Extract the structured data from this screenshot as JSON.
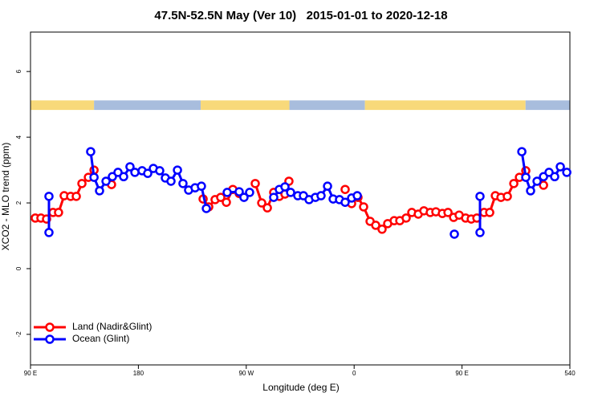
{
  "chart_data": {
    "type": "line",
    "title": "47.5N-52.5N May (Ver 10)   2015-01-01 to 2020-12-18",
    "x_label": "Longitude (deg E)",
    "y_label": "XCO2 - MLO trend (ppm)",
    "xlim": [
      90,
      540
    ],
    "ylim": [
      -2.93,
      7.2
    ],
    "xticks": [
      {
        "value": 90,
        "label": "90 E"
      },
      180,
      {
        "value": 270,
        "label": "90 W"
      },
      {
        "value": 360,
        "label": "0"
      },
      {
        "value": 450,
        "label": "90 E"
      },
      540
    ],
    "yticks": [
      -2,
      0,
      2,
      4,
      6
    ],
    "legend": "bottom-left",
    "strip": {
      "ylim": [
        4.83,
        5.12
      ],
      "segments": [
        {
          "start": 90,
          "end": 143,
          "color": "#f8d97a"
        },
        {
          "start": 143,
          "end": 232,
          "color": "#a8bddd"
        },
        {
          "start": 232,
          "end": 306,
          "color": "#f8d97a"
        },
        {
          "start": 306,
          "end": 369,
          "color": "#a8bddd"
        },
        {
          "start": 369,
          "end": 503,
          "color": "#f8d97a"
        },
        {
          "start": 503,
          "end": 540,
          "color": "#a8bddd"
        }
      ]
    },
    "series": [
      {
        "name": "Land (Nadir&Glint)",
        "color": "#ff0000",
        "x": [
          94.0,
          98.7,
          103.4,
          108.8,
          113.4,
          118.1,
          123.5,
          128.2,
          132.9,
          138.3,
          143.0,
          null,
          157.6,
          null,
          234.0,
          238.7,
          244.0,
          248.7,
          253.4,
          258.8,
          264.1,
          null,
          277.5,
          282.9,
          287.6,
          292.9,
          297.6,
          302.3,
          305.6,
          null,
          352.5,
          null,
          357.9,
          363.2,
          367.9,
          373.3,
          378.0,
          383.3,
          388.0,
          393.4,
          398.1,
          403.4,
          408.1,
          413.5,
          418.2,
          423.5,
          428.2,
          433.6,
          438.3,
          443.0,
          447.6,
          453.0,
          457.7,
          462.4,
          468.4,
          473.1,
          477.8,
          482.5,
          487.8,
          493.2,
          497.9,
          503.2,
          null,
          518.0
        ],
        "values": [
          1.54,
          1.54,
          1.51,
          1.71,
          1.71,
          2.22,
          2.2,
          2.2,
          2.59,
          2.78,
          3.0,
          null,
          2.56,
          null,
          2.12,
          1.88,
          2.1,
          2.17,
          2.02,
          2.41,
          2.29,
          null,
          2.59,
          2.0,
          1.85,
          2.32,
          2.2,
          2.27,
          2.66,
          null,
          2.41,
          null,
          1.98,
          2.17,
          1.88,
          1.44,
          1.32,
          1.2,
          1.37,
          1.46,
          1.46,
          1.54,
          1.71,
          1.66,
          1.76,
          1.71,
          1.73,
          1.68,
          1.71,
          1.56,
          1.63,
          1.54,
          1.51,
          1.54,
          1.71,
          1.71,
          2.22,
          2.17,
          2.2,
          2.59,
          2.78,
          2.98,
          null,
          2.54
        ]
      },
      {
        "name": "Ocean (Glint)",
        "color": "#0000ff",
        "x": [
          105.4,
          105.4,
          null,
          140.2,
          143.0,
          147.6,
          153.0,
          158.3,
          163.0,
          167.7,
          173.0,
          177.1,
          183.1,
          187.8,
          192.5,
          197.8,
          202.5,
          207.2,
          212.6,
          217.2,
          221.9,
          227.3,
          232.6,
          236.7,
          null,
          254.1,
          264.1,
          268.1,
          272.8,
          null,
          292.9,
          297.6,
          302.3,
          307.0,
          313.0,
          317.7,
          322.4,
          327.7,
          332.4,
          337.8,
          342.5,
          347.8,
          352.5,
          357.9,
          362.6,
          null,
          443.6,
          null,
          465.0,
          465.0,
          null,
          499.9,
          503.2,
          507.2,
          512.6,
          518.0,
          522.6,
          527.3,
          532.0,
          537.4
        ],
        "values": [
          2.2,
          1.1,
          null,
          3.56,
          2.78,
          2.37,
          2.66,
          2.8,
          2.93,
          2.8,
          3.1,
          2.93,
          2.98,
          2.9,
          3.05,
          2.98,
          2.76,
          2.66,
          3.0,
          2.59,
          2.39,
          2.46,
          2.51,
          1.83,
          null,
          2.32,
          2.34,
          2.17,
          2.32,
          null,
          2.17,
          2.41,
          2.49,
          2.32,
          2.22,
          2.22,
          2.1,
          2.17,
          2.22,
          2.51,
          2.12,
          2.1,
          2.02,
          2.15,
          2.22,
          null,
          1.05,
          null,
          2.2,
          1.1,
          null,
          3.56,
          2.78,
          2.37,
          2.66,
          2.8,
          2.93,
          2.8,
          3.1,
          2.93
        ]
      }
    ]
  }
}
